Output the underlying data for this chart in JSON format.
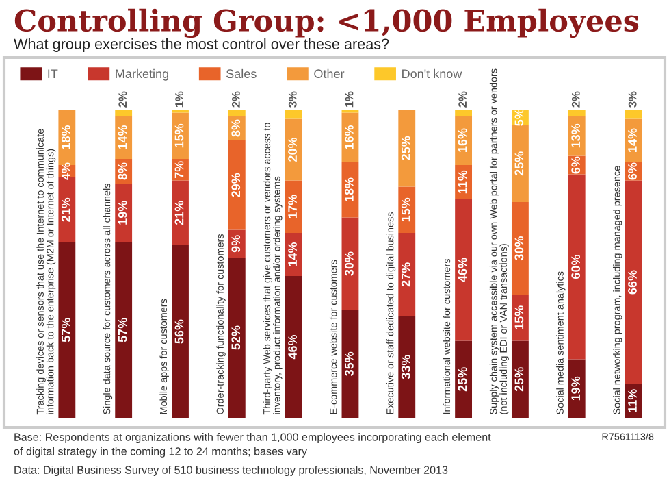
{
  "chart_data": {
    "type": "bar",
    "stacked": true,
    "title": "Controlling Group: <1,000 Employees",
    "subtitle": "What group exercises the most control over these areas?",
    "categories": [
      "Tracking devices or sensors that use the Internet to communicate\ninformation back to the enterprise (M2M or Internet of things)",
      "Single data source for customers across all channels",
      "Mobile apps for customers",
      "Order-tracking functionality for customers",
      "Third-party Web services that give customers or vendors access to\ninventory, product information and/or ordering systems",
      "E-commerce website for customers",
      "Executive or staff dedicated to digital business",
      "Informational website for customers",
      "Supply chain system accessible via our own Web portal for partners or vendors\n(not including EDI or VAN transactions)",
      "Social media sentiment analytics",
      "Social networking program, including managed presence"
    ],
    "series": [
      {
        "name": "IT",
        "color": "#7d1416",
        "values": [
          57,
          57,
          56,
          52,
          46,
          35,
          33,
          25,
          25,
          19,
          11
        ],
        "value_labels": [
          "57%",
          "57%",
          "56%",
          "52%",
          "46%",
          "35%",
          "33%",
          "25%",
          "25%",
          "19%",
          "11%"
        ]
      },
      {
        "name": "Marketing",
        "color": "#c8372d",
        "values": [
          21,
          19,
          21,
          9,
          14,
          30,
          27,
          46,
          15,
          60,
          66
        ],
        "value_labels": [
          "21%",
          "19%",
          "21%",
          "9%",
          "14%",
          "30%",
          "27%",
          "46%",
          "15%",
          "60%",
          "66%"
        ]
      },
      {
        "name": "Sales",
        "color": "#e8642a",
        "values": [
          4,
          8,
          7,
          29,
          17,
          18,
          15,
          11,
          30,
          6,
          6
        ],
        "value_labels": [
          "4%",
          "8%",
          "7%",
          "29%",
          "17%",
          "18%",
          "15%",
          "11%",
          "30%",
          "6%",
          "6%"
        ]
      },
      {
        "name": "Other",
        "color": "#f39a3c",
        "values": [
          18,
          14,
          15,
          8,
          20,
          16,
          25,
          16,
          25,
          13,
          14
        ],
        "value_labels": [
          "18%",
          "14%",
          "15%",
          "8%",
          "20%",
          "16%",
          "25%",
          "16%",
          "25%",
          "13%",
          "14%"
        ]
      },
      {
        "name": "Don't know",
        "color": "#fdc82a",
        "values": [
          0,
          2,
          1,
          2,
          3,
          1,
          0,
          2,
          5,
          2,
          3
        ],
        "value_labels": [
          null,
          "2%",
          "1%",
          "2%",
          "3%",
          "1%",
          null,
          "2%",
          "5%",
          "2%",
          "3%"
        ]
      }
    ],
    "legend": "top left",
    "annotations": [
      "Base: Respondents at organizations with fewer than 1,000 employees incorporating each element\nof digital strategy in the coming 12 to 24 months; bases vary",
      "Data: Digital Business Survey of 510 business technology professionals, November 2013",
      "R7561113/8"
    ]
  }
}
